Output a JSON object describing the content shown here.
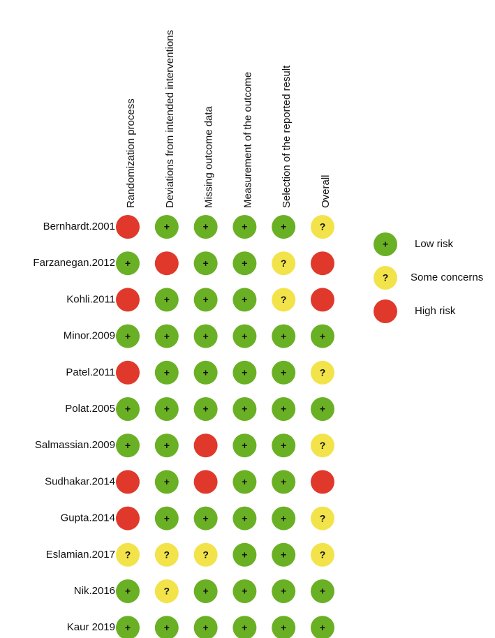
{
  "columns": [
    "Randomization process",
    "Deviations from intended interventions",
    "Missing outcome data",
    "Measurement of the outcome",
    "Selection of the reported result",
    "Overall"
  ],
  "rows": [
    {
      "study": "Bernhardt.2001",
      "cells": [
        null,
        "+",
        "+",
        "+",
        "+",
        "?"
      ]
    },
    {
      "study": "Farzanegan.2012",
      "cells": [
        "+",
        null,
        "+",
        "+",
        "?",
        null
      ]
    },
    {
      "study": "Kohli.2011",
      "cells": [
        null,
        "+",
        "+",
        "+",
        "?",
        null
      ]
    },
    {
      "study": "Minor.2009",
      "cells": [
        "+",
        "+",
        "+",
        "+",
        "+",
        "+"
      ]
    },
    {
      "study": "Patel.2011",
      "cells": [
        null,
        "+",
        "+",
        "+",
        "+",
        "?"
      ]
    },
    {
      "study": "Polat.2005",
      "cells": [
        "+",
        "+",
        "+",
        "+",
        "+",
        "+"
      ]
    },
    {
      "study": "Salmassian.2009",
      "cells": [
        "+",
        "+",
        null,
        "+",
        "+",
        "?"
      ]
    },
    {
      "study": "Sudhakar.2014",
      "cells": [
        null,
        "+",
        null,
        "+",
        "+",
        null
      ]
    },
    {
      "study": "Gupta.2014",
      "cells": [
        null,
        "+",
        "+",
        "+",
        "+",
        "?"
      ]
    },
    {
      "study": "Eslamian.2017",
      "cells": [
        "?",
        "?",
        "?",
        "+",
        "+",
        "?"
      ]
    },
    {
      "study": "Nik.2016",
      "cells": [
        "+",
        "?",
        "+",
        "+",
        "+",
        "+"
      ]
    },
    {
      "study": "Kaur 2019",
      "cells": [
        "+",
        "+",
        "+",
        "+",
        "+",
        "+"
      ]
    }
  ],
  "legend": [
    {
      "symbol": "+",
      "label": "Low risk",
      "color": "#6ab024"
    },
    {
      "symbol": "?",
      "label": "Some concerns",
      "color": "#f3e34b"
    },
    {
      "symbol": null,
      "label": "High risk",
      "color": "#e0392b"
    }
  ]
}
